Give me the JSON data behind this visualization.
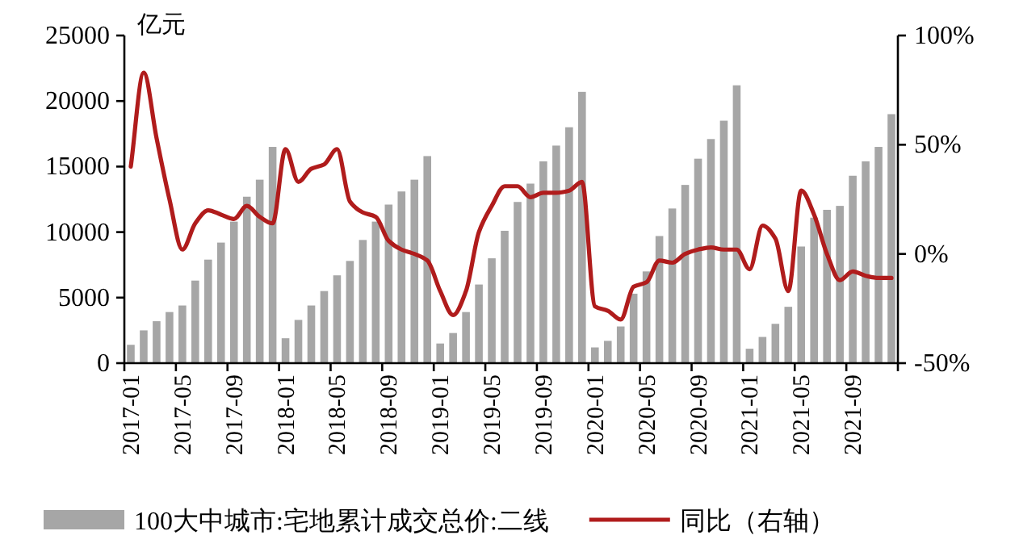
{
  "chart_data": {
    "type": "bar",
    "ylabel": "亿元",
    "categories": [
      "2017-01",
      null,
      null,
      null,
      "2017-05",
      null,
      null,
      null,
      "2017-09",
      null,
      null,
      null,
      "2018-01",
      null,
      null,
      null,
      "2018-05",
      null,
      null,
      null,
      "2018-09",
      null,
      null,
      null,
      "2019-01",
      null,
      null,
      null,
      "2019-05",
      null,
      null,
      null,
      "2019-09",
      null,
      null,
      null,
      "2020-01",
      null,
      null,
      null,
      "2020-05",
      null,
      null,
      null,
      "2020-09",
      null,
      null,
      null,
      "2021-01",
      null,
      null,
      null,
      "2021-05",
      null,
      null,
      null,
      "2021-09",
      null,
      null,
      null
    ],
    "series": [
      {
        "name": "100大中城市:宅地累计成交总价:二线",
        "color": "#a6a6a6",
        "values": [
          1400,
          2500,
          3200,
          3900,
          4400,
          6300,
          7900,
          9200,
          10800,
          12700,
          14000,
          16500,
          1900,
          3300,
          4400,
          5500,
          6700,
          7800,
          9400,
          10800,
          12100,
          13100,
          14000,
          15800,
          1500,
          2300,
          3900,
          6000,
          8000,
          10100,
          12300,
          13700,
          15400,
          16600,
          18000,
          20700,
          1200,
          1700,
          2800,
          5300,
          7000,
          9700,
          11800,
          13600,
          15600,
          17100,
          18500,
          21200,
          1100,
          2000,
          3000,
          4300,
          8900,
          11100,
          11700,
          12000,
          14300,
          15400,
          16500,
          19000
        ]
      },
      {
        "name": "同比（右轴）",
        "type": "line",
        "axis": "y2",
        "color": "#b01c1c",
        "values": [
          40,
          83,
          53,
          25,
          2,
          14,
          20,
          18,
          16,
          22,
          17,
          14,
          48,
          33,
          39,
          41,
          48,
          24,
          19,
          17,
          6,
          2,
          0,
          -3,
          -17,
          -28,
          -17,
          10,
          22,
          31,
          31,
          26,
          28,
          28,
          29,
          33,
          -24,
          -26,
          -30,
          -15,
          -13,
          -3,
          -4,
          0,
          2,
          3,
          2,
          2,
          -7,
          13,
          7,
          -17,
          29,
          18,
          0,
          -12,
          -8,
          -10,
          -11,
          -11
        ]
      }
    ],
    "ylim": [
      0,
      25000
    ],
    "yticks": [
      0,
      5000,
      10000,
      15000,
      20000,
      25000
    ],
    "y2lim": [
      -50,
      100
    ],
    "y2ticks": [
      {
        "value": -50,
        "label": "-50%"
      },
      {
        "value": 0,
        "label": "0%"
      },
      {
        "value": 50,
        "label": "50%"
      },
      {
        "value": 100,
        "label": "100%"
      }
    ],
    "legend": "bottom"
  }
}
